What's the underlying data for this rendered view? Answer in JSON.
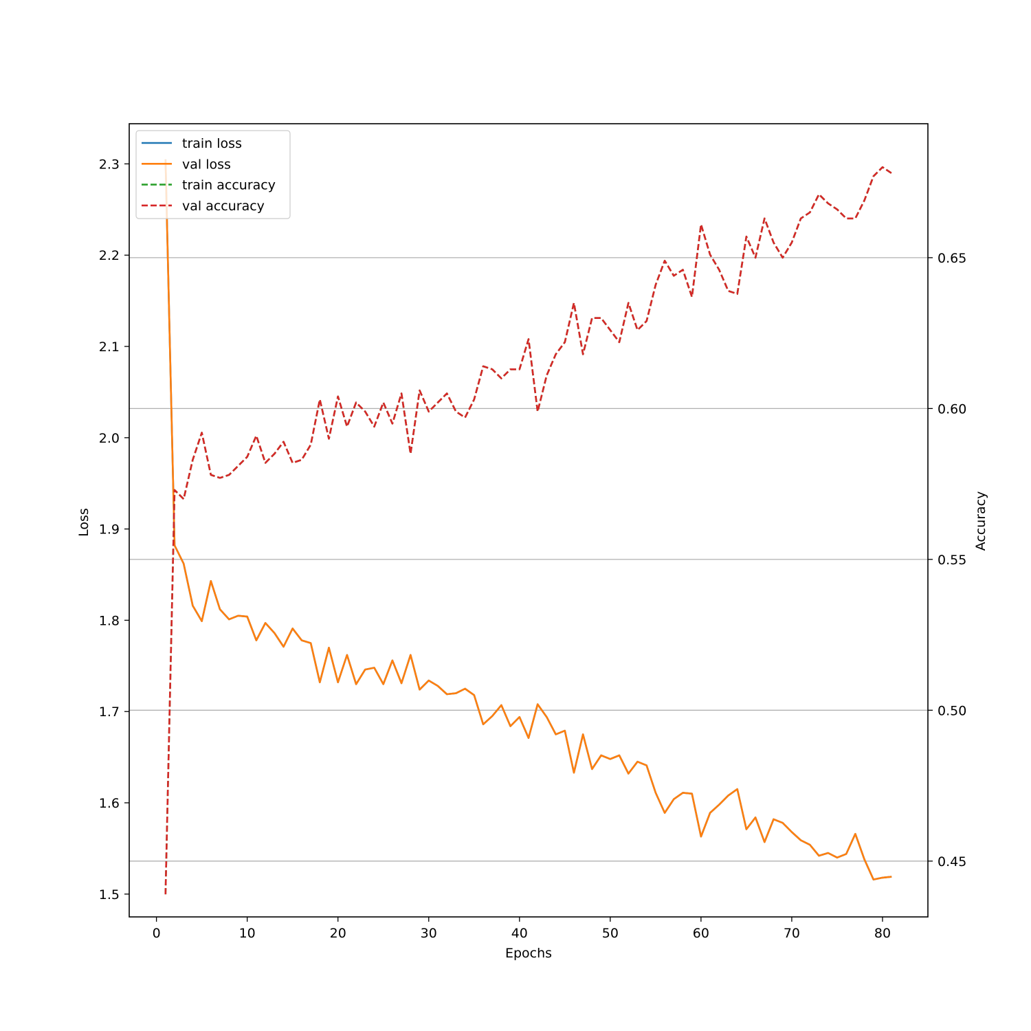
{
  "chart_data": {
    "type": "line",
    "title": "",
    "xlabel": "Epochs",
    "ylabel": "Loss",
    "y2label": "Accuracy",
    "xlim": [
      -3,
      85
    ],
    "ylim": [
      1.475,
      2.344
    ],
    "y2lim": [
      0.4315,
      0.6944
    ],
    "xticks": [
      0,
      10,
      20,
      30,
      40,
      50,
      60,
      70,
      80
    ],
    "yticks": [
      1.5,
      1.6,
      1.7,
      1.8,
      1.9,
      2.0,
      2.1,
      2.2,
      2.3
    ],
    "y2ticks": [
      0.45,
      0.5,
      0.55,
      0.6,
      0.65
    ],
    "grid": "horizontal lines at accuracy ticks",
    "legend_position": "upper-left",
    "x": [
      1,
      2,
      3,
      4,
      5,
      6,
      7,
      8,
      9,
      10,
      11,
      12,
      13,
      14,
      15,
      16,
      17,
      18,
      19,
      20,
      21,
      22,
      23,
      24,
      25,
      26,
      27,
      28,
      29,
      30,
      31,
      32,
      33,
      34,
      35,
      36,
      37,
      38,
      39,
      40,
      41,
      42,
      43,
      44,
      45,
      46,
      47,
      48,
      49,
      50,
      51,
      52,
      53,
      54,
      55,
      56,
      57,
      58,
      59,
      60,
      61,
      62,
      63,
      64,
      65,
      66,
      67,
      68,
      69,
      70,
      71,
      72,
      73,
      74,
      75,
      76,
      77,
      78,
      79,
      80,
      81
    ],
    "series": [
      {
        "name": "train loss",
        "axis": "left",
        "style": "solid",
        "color": "#1f77b4",
        "values": [
          2.305,
          1.882,
          1.862,
          1.816,
          1.799,
          1.843,
          1.812,
          1.801,
          1.805,
          1.804,
          1.778,
          1.797,
          1.786,
          1.771,
          1.791,
          1.778,
          1.775,
          1.732,
          1.77,
          1.732,
          1.762,
          1.73,
          1.746,
          1.748,
          1.73,
          1.756,
          1.731,
          1.762,
          1.724,
          1.734,
          1.728,
          1.719,
          1.72,
          1.725,
          1.718,
          1.686,
          1.695,
          1.707,
          1.684,
          1.694,
          1.671,
          1.708,
          1.694,
          1.675,
          1.679,
          1.633,
          1.675,
          1.637,
          1.652,
          1.648,
          1.652,
          1.632,
          1.645,
          1.641,
          1.611,
          1.589,
          1.604,
          1.611,
          1.61,
          1.563,
          1.589,
          1.598,
          1.608,
          1.615,
          1.571,
          1.584,
          1.557,
          1.582,
          1.578,
          1.568,
          1.559,
          1.554,
          1.542,
          1.545,
          1.54,
          1.544,
          1.566,
          1.538,
          1.516,
          1.518,
          1.519
        ]
      },
      {
        "name": "val loss",
        "axis": "left",
        "style": "solid",
        "color": "#ff7f0e",
        "values": [
          2.305,
          1.882,
          1.862,
          1.816,
          1.799,
          1.843,
          1.812,
          1.801,
          1.805,
          1.804,
          1.778,
          1.797,
          1.786,
          1.771,
          1.791,
          1.778,
          1.775,
          1.732,
          1.77,
          1.732,
          1.762,
          1.73,
          1.746,
          1.748,
          1.73,
          1.756,
          1.731,
          1.762,
          1.724,
          1.734,
          1.728,
          1.719,
          1.72,
          1.725,
          1.718,
          1.686,
          1.695,
          1.707,
          1.684,
          1.694,
          1.671,
          1.708,
          1.694,
          1.675,
          1.679,
          1.633,
          1.675,
          1.637,
          1.652,
          1.648,
          1.652,
          1.632,
          1.645,
          1.641,
          1.611,
          1.589,
          1.604,
          1.611,
          1.61,
          1.563,
          1.589,
          1.598,
          1.608,
          1.615,
          1.571,
          1.584,
          1.557,
          1.582,
          1.578,
          1.568,
          1.559,
          1.554,
          1.542,
          1.545,
          1.54,
          1.544,
          1.566,
          1.538,
          1.516,
          1.518,
          1.519
        ]
      },
      {
        "name": "train accuracy",
        "axis": "right",
        "style": "dashed",
        "color": "#2ca02c",
        "values": [
          0.439,
          0.573,
          0.57,
          0.583,
          0.592,
          0.578,
          0.577,
          0.578,
          0.581,
          0.584,
          0.591,
          0.582,
          0.585,
          0.589,
          0.582,
          0.583,
          0.588,
          0.603,
          0.59,
          0.604,
          0.594,
          0.602,
          0.599,
          0.594,
          0.602,
          0.595,
          0.605,
          0.585,
          0.606,
          0.599,
          0.602,
          0.605,
          0.599,
          0.597,
          0.603,
          0.614,
          0.613,
          0.61,
          0.613,
          0.613,
          0.623,
          0.599,
          0.611,
          0.618,
          0.622,
          0.635,
          0.618,
          0.63,
          0.63,
          0.626,
          0.622,
          0.635,
          0.626,
          0.629,
          0.641,
          0.649,
          0.644,
          0.646,
          0.637,
          0.661,
          0.651,
          0.646,
          0.639,
          0.638,
          0.657,
          0.65,
          0.663,
          0.655,
          0.65,
          0.655,
          0.663,
          0.665,
          0.671,
          0.668,
          0.666,
          0.663,
          0.663,
          0.669,
          0.677,
          0.68,
          0.678
        ]
      },
      {
        "name": "val accuracy",
        "axis": "right",
        "style": "dashed",
        "color": "#d62728",
        "values": [
          0.439,
          0.573,
          0.57,
          0.583,
          0.592,
          0.578,
          0.577,
          0.578,
          0.581,
          0.584,
          0.591,
          0.582,
          0.585,
          0.589,
          0.582,
          0.583,
          0.588,
          0.603,
          0.59,
          0.604,
          0.594,
          0.602,
          0.599,
          0.594,
          0.602,
          0.595,
          0.605,
          0.585,
          0.606,
          0.599,
          0.602,
          0.605,
          0.599,
          0.597,
          0.603,
          0.614,
          0.613,
          0.61,
          0.613,
          0.613,
          0.623,
          0.599,
          0.611,
          0.618,
          0.622,
          0.635,
          0.618,
          0.63,
          0.63,
          0.626,
          0.622,
          0.635,
          0.626,
          0.629,
          0.641,
          0.649,
          0.644,
          0.646,
          0.637,
          0.661,
          0.651,
          0.646,
          0.639,
          0.638,
          0.657,
          0.65,
          0.663,
          0.655,
          0.65,
          0.655,
          0.663,
          0.665,
          0.671,
          0.668,
          0.666,
          0.663,
          0.663,
          0.669,
          0.677,
          0.68,
          0.678
        ]
      }
    ]
  }
}
